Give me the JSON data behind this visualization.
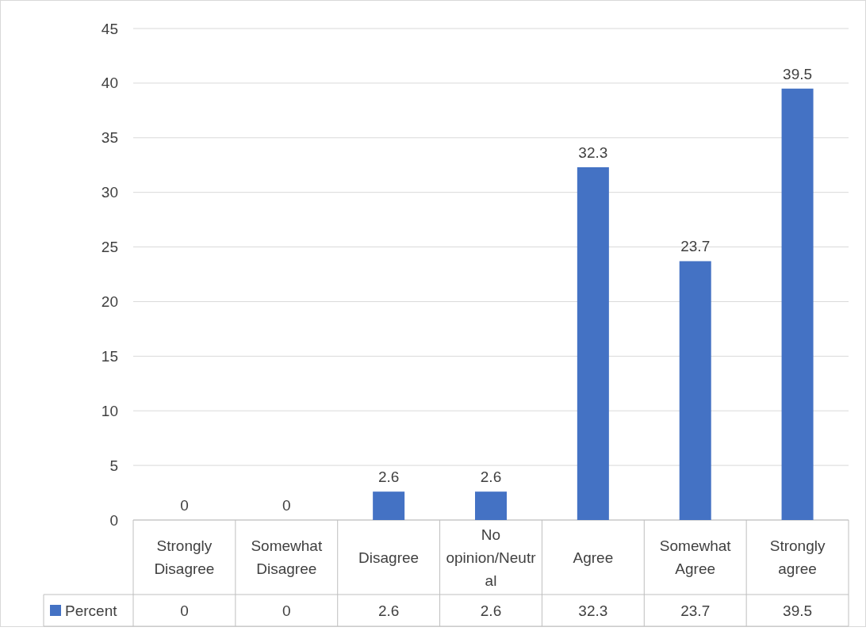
{
  "chart_data": {
    "type": "bar",
    "categories": [
      "Strongly Disagree",
      "Somewhat Disagree",
      "Disagree",
      "No opinion/Neutral",
      "Agree",
      "Somewhat Agree",
      "Strongly agree"
    ],
    "series": [
      {
        "name": "Percent",
        "color": "#4472c4",
        "values": [
          0,
          0,
          2.6,
          2.6,
          32.3,
          23.7,
          39.5
        ],
        "value_labels": [
          "0",
          "0",
          "2.6",
          "2.6",
          "32.3",
          "23.7",
          "39.5"
        ]
      }
    ],
    "annotations": [
      "0",
      "0",
      "2.6",
      "2.6",
      "32.3",
      "23.7",
      "39.5"
    ],
    "ylim": [
      0,
      45
    ],
    "yticks": [
      0,
      5,
      10,
      15,
      20,
      25,
      30,
      35,
      40,
      45
    ],
    "grid": "y",
    "legend": "bottom"
  }
}
